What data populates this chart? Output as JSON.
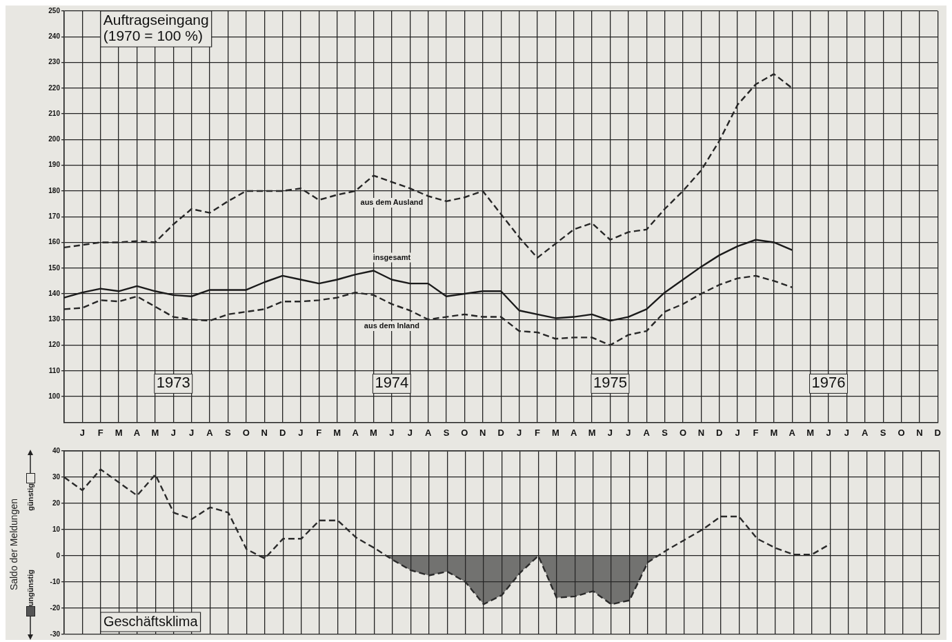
{
  "chart_data": [
    {
      "type": "line",
      "title": "Auftragseingang",
      "subtitle": "(1970 = 100 %)",
      "categories": [
        null,
        "J",
        "F",
        "M",
        "A",
        "M",
        "J",
        "J",
        "A",
        "S",
        "O",
        "N",
        "D",
        "J",
        "F",
        "M",
        "A",
        "M",
        "J",
        "J",
        "A",
        "S",
        "O",
        "N",
        "D",
        "J",
        "F",
        "M",
        "A",
        "M",
        "J",
        "J",
        "A",
        "S",
        "O",
        "N",
        "D",
        "J",
        "F",
        "M",
        "A",
        "M",
        "J",
        "J",
        "A",
        "S",
        "O",
        "N",
        "D"
      ],
      "series": [
        {
          "name": "aus dem Ausland",
          "color": "#262626",
          "line_style": "dashed",
          "values": [
            158,
            159,
            160,
            160,
            160.5,
            160,
            167,
            173,
            171.5,
            176,
            180,
            180,
            180,
            181,
            176.5,
            178.5,
            180,
            186,
            183.5,
            181,
            178,
            176,
            177.5,
            180,
            171,
            162,
            154,
            159.5,
            165,
            167.5,
            161,
            164,
            165,
            173,
            180,
            188,
            199.5,
            213.5,
            221.5,
            225.5,
            220,
            null,
            null,
            null,
            null,
            null,
            null,
            null,
            null
          ]
        },
        {
          "name": "insgesamt",
          "color": "#1a1a1a",
          "line_style": "solid",
          "values": [
            138.5,
            140.5,
            142,
            141,
            143,
            141,
            139.5,
            139,
            141.5,
            141.5,
            141.5,
            144.5,
            147,
            145.5,
            144,
            145.5,
            147.5,
            149,
            145.5,
            144,
            144,
            139,
            140,
            141,
            141,
            133.5,
            132,
            130.5,
            131,
            132,
            129.5,
            131,
            134,
            140.5,
            145.5,
            150.5,
            155,
            158.5,
            161,
            160,
            157,
            null,
            null,
            null,
            null,
            null,
            null,
            null,
            null
          ]
        },
        {
          "name": "aus dem Inland",
          "color": "#262626",
          "line_style": "dashed",
          "values": [
            134,
            134.5,
            137.5,
            137,
            139,
            135,
            131,
            130,
            129.5,
            132,
            133,
            134,
            137,
            137,
            137.5,
            138.5,
            140.5,
            139.5,
            136,
            133.5,
            130,
            131,
            132,
            131,
            131,
            125.5,
            125,
            122.5,
            123,
            123,
            120,
            124,
            125.5,
            133,
            136,
            140,
            143.5,
            146,
            147,
            145,
            142.5,
            null,
            null,
            null,
            null,
            null,
            null,
            null,
            null
          ]
        }
      ],
      "ylim": [
        90,
        250
      ],
      "yticks": [
        100,
        110,
        120,
        130,
        140,
        150,
        160,
        170,
        180,
        190,
        200,
        210,
        220,
        230,
        240,
        250
      ],
      "grid": true,
      "legend": false,
      "marker": "none",
      "annotations": [
        "1973",
        "1974",
        "1975",
        "1976"
      ]
    },
    {
      "type": "line",
      "title": "Geschäftsklima",
      "ylabel": "Saldo der Meldungen",
      "tick_labels": "y",
      "categories": [
        null,
        null,
        null,
        null,
        null,
        null,
        null,
        null,
        null,
        null,
        null,
        null,
        null,
        null,
        null,
        null,
        null,
        null,
        null,
        null,
        null,
        null,
        null,
        null,
        null,
        null,
        null,
        null,
        null,
        null,
        null,
        null,
        null,
        null,
        null,
        null,
        null,
        null,
        null,
        null,
        null,
        null,
        null,
        null,
        null,
        null,
        null,
        null,
        null
      ],
      "series": [
        {
          "type": "area",
          "color": "#2a2a2a",
          "line_style": "dashed",
          "values": [
            30,
            25,
            33,
            28,
            23,
            31,
            16.5,
            14,
            18.5,
            16.5,
            2.5,
            -1,
            6.5,
            6.5,
            13.5,
            13.5,
            7,
            3,
            -1.5,
            -5.5,
            -7.5,
            -6,
            -10,
            -18.5,
            -15,
            -6.5,
            0,
            -16,
            -15.5,
            -13.5,
            -18.5,
            -17,
            -2.5,
            2,
            6,
            10,
            15,
            15,
            6.5,
            3,
            0.5,
            0.5,
            4.5,
            null,
            null,
            null,
            null,
            null,
            null
          ]
        }
      ],
      "ylim": [
        -30,
        40
      ],
      "yticks": [
        -30,
        -20,
        -10,
        0,
        10,
        20,
        30,
        40
      ],
      "grid": true,
      "legend": false,
      "marker": "none",
      "annotations": [
        "ungünstig",
        "günstig"
      ]
    }
  ]
}
